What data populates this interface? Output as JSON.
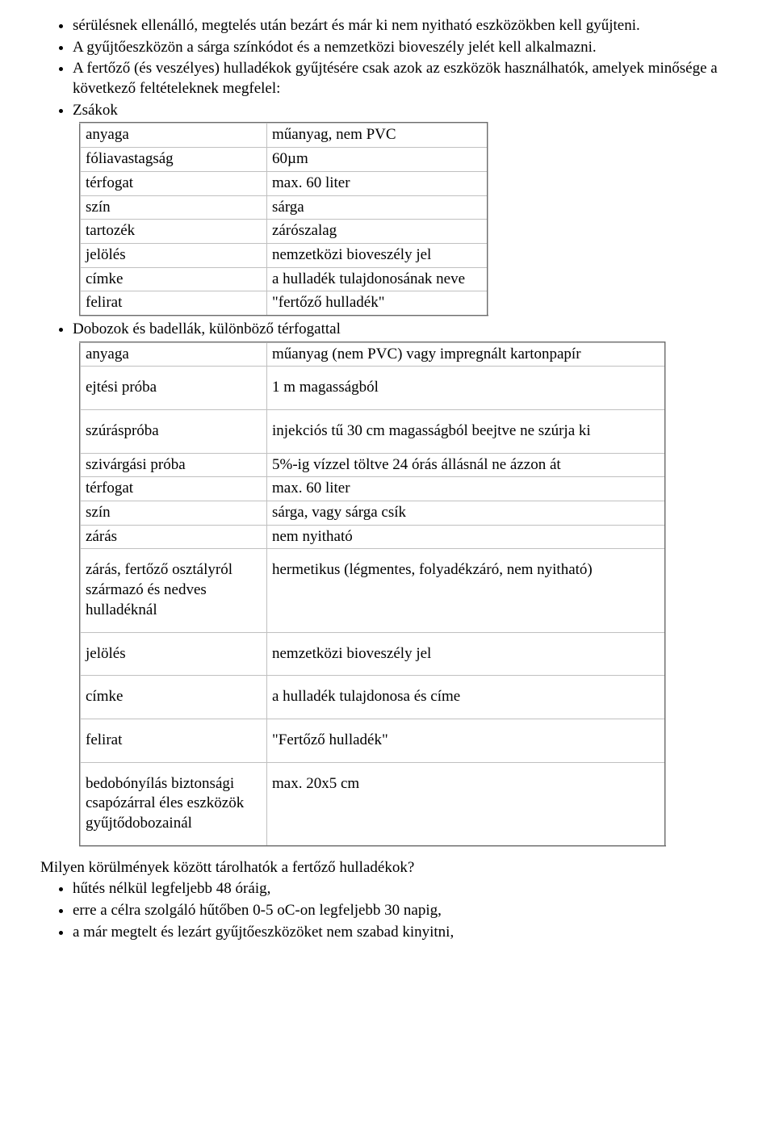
{
  "intro": {
    "line1": "sérülésnek ellenálló, megtelés után bezárt és már ki nem nyitható eszközökben kell gyűjteni.",
    "line2": "A gyűjtőeszközön a sárga színkódot és a nemzetközi bioveszély jelét kell alkalmazni.",
    "line3": "A fertőző (és veszélyes) hulladékok gyűjtésére csak azok az eszközök használhatók, amelyek minősége a következő feltételeknek megfelel:",
    "line4": "Zsákok"
  },
  "table1": {
    "col1_width": 218,
    "col2_width": 260,
    "rows": [
      [
        "anyaga",
        "műanyag, nem PVC"
      ],
      [
        "fóliavastagság",
        "60µm"
      ],
      [
        "térfogat",
        "max. 60 liter"
      ],
      [
        "szín",
        "sárga"
      ],
      [
        "tartozék",
        "zárószalag"
      ],
      [
        "jelölés",
        "nemzetközi bioveszély jel"
      ],
      [
        "címke",
        "a hulladék tulajdonosának neve"
      ],
      [
        "felirat",
        "\"fertőző hulladék\""
      ]
    ]
  },
  "mid_bullet": "Dobozok és badellák, különböző térfogattal",
  "table2": {
    "col1_width": 218,
    "col2_width": 480,
    "rows": [
      [
        "anyaga",
        " műanyag (nem PVC) vagy impregnált kartonpapír"
      ],
      [
        "ejtési próba",
        " 1 m magasságból"
      ],
      [
        "szúráspróba",
        "injekciós tű 30 cm magasságból beejtve ne szúrja ki"
      ],
      [
        "szivárgási próba",
        "5%-ig vízzel töltve 24 órás állásnál ne ázzon át"
      ],
      [
        "térfogat",
        "max. 60 liter"
      ],
      [
        "szín",
        "sárga, vagy sárga csík"
      ],
      [
        "zárás",
        "nem nyitható"
      ],
      [
        "zárás, fertőző osztályról származó és nedves hulladéknál",
        "hermetikus (légmentes, folyadékzáró, nem nyitható)"
      ],
      [
        "jelölés",
        "nemzetközi bioveszély jel"
      ],
      [
        "címke",
        "a hulladék tulajdonosa és címe"
      ],
      [
        "felirat",
        "\"Fertőző hulladék\""
      ],
      [
        "bedobónyílás biztonsági csapózárral éles eszközök gyűjtődobozainál",
        "max. 20x5 cm"
      ]
    ],
    "tall_rows": [
      1,
      2,
      7,
      8,
      9,
      10,
      11
    ]
  },
  "outro": {
    "question": "Milyen körülmények között tárolhatók a fertőző hulladékok?",
    "items": [
      "hűtés nélkül legfeljebb 48 óráig,",
      "erre a célra szolgáló hűtőben 0-5 oC-on legfeljebb 30 napig,",
      "a már megtelt és lezárt gyűjtőeszközöket nem szabad kinyitni,"
    ]
  }
}
